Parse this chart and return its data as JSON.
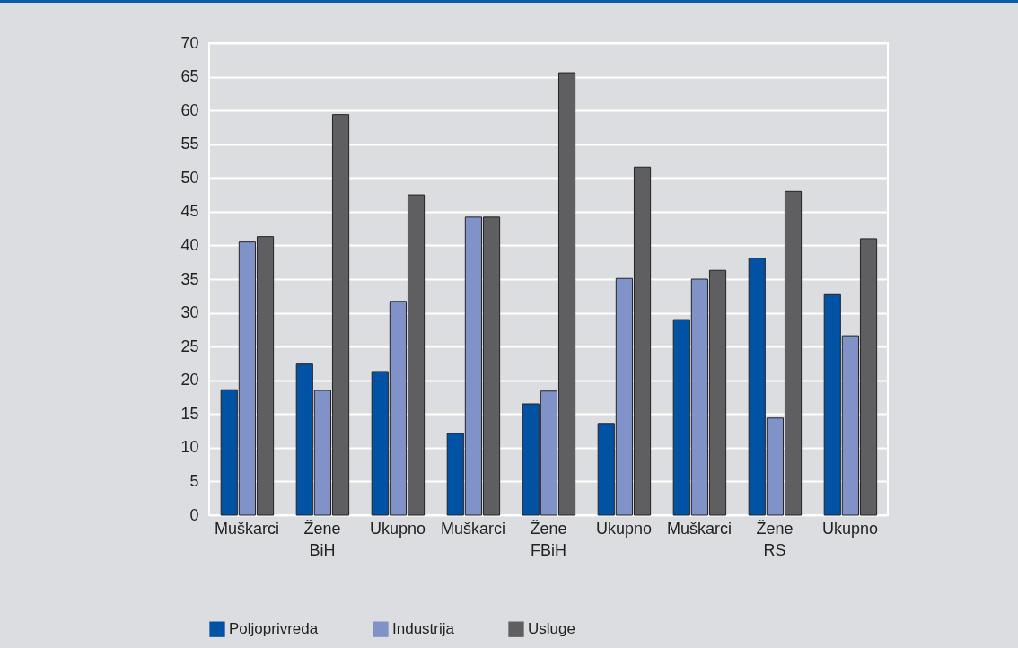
{
  "chart_data": {
    "type": "bar",
    "categories": [
      "Muškarci",
      "Žene\nBiH",
      "Ukupno",
      "Muškarci",
      "Žene\nFBiH",
      "Ukupno",
      "Muškarci",
      "Žene\nRS",
      "Ukupno"
    ],
    "series": [
      {
        "name": "Poljoprivreda",
        "color": "#0052a5",
        "values": [
          18.6,
          22.4,
          21.3,
          12.1,
          16.5,
          13.6,
          29.0,
          38.1,
          32.7
        ]
      },
      {
        "name": "Industrija",
        "color": "#8093c8",
        "values": [
          40.5,
          18.5,
          31.7,
          44.2,
          18.4,
          35.1,
          35.0,
          14.4,
          26.6
        ]
      },
      {
        "name": "Usluge",
        "color": "#5f5f61",
        "values": [
          41.3,
          59.4,
          47.5,
          44.2,
          65.6,
          51.6,
          36.3,
          48.0,
          41.0
        ]
      }
    ],
    "ylim": [
      0,
      70
    ],
    "yticks": [
      0,
      5,
      10,
      15,
      20,
      25,
      30,
      35,
      40,
      45,
      50,
      55,
      60,
      65,
      70
    ],
    "grid": "y",
    "legend": "bottom"
  }
}
